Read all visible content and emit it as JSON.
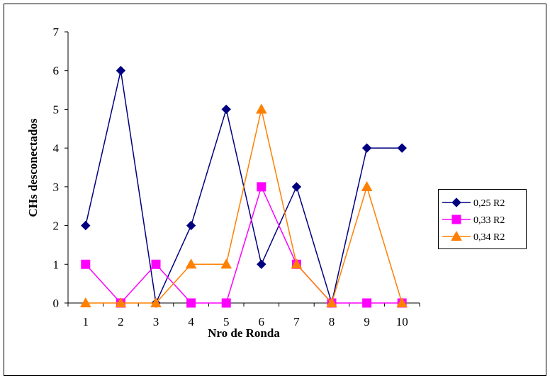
{
  "chart_data": {
    "type": "line",
    "title": "",
    "xlabel": "Nro de Ronda",
    "ylabel": "CHs desconectados",
    "categories": [
      "1",
      "2",
      "3",
      "4",
      "5",
      "6",
      "7",
      "8",
      "9",
      "10"
    ],
    "ylim": [
      0,
      7
    ],
    "yticks": [
      "0",
      "1",
      "2",
      "3",
      "4",
      "5",
      "6",
      "7"
    ],
    "grid": false,
    "legend_position": "right",
    "series": [
      {
        "name": "0,25 R2",
        "color": "#000080",
        "marker": "diamond",
        "values": [
          2,
          6,
          0,
          2,
          5,
          1,
          3,
          0,
          4,
          4
        ]
      },
      {
        "name": "0,33 R2",
        "color": "#ff00ff",
        "marker": "square",
        "values": [
          1,
          0,
          1,
          0,
          0,
          3,
          1,
          0,
          0,
          0
        ]
      },
      {
        "name": "0,34 R2",
        "color": "#ff8000",
        "marker": "triangle",
        "values": [
          0,
          0,
          0,
          1,
          1,
          5,
          1,
          0,
          3,
          0
        ]
      }
    ]
  }
}
